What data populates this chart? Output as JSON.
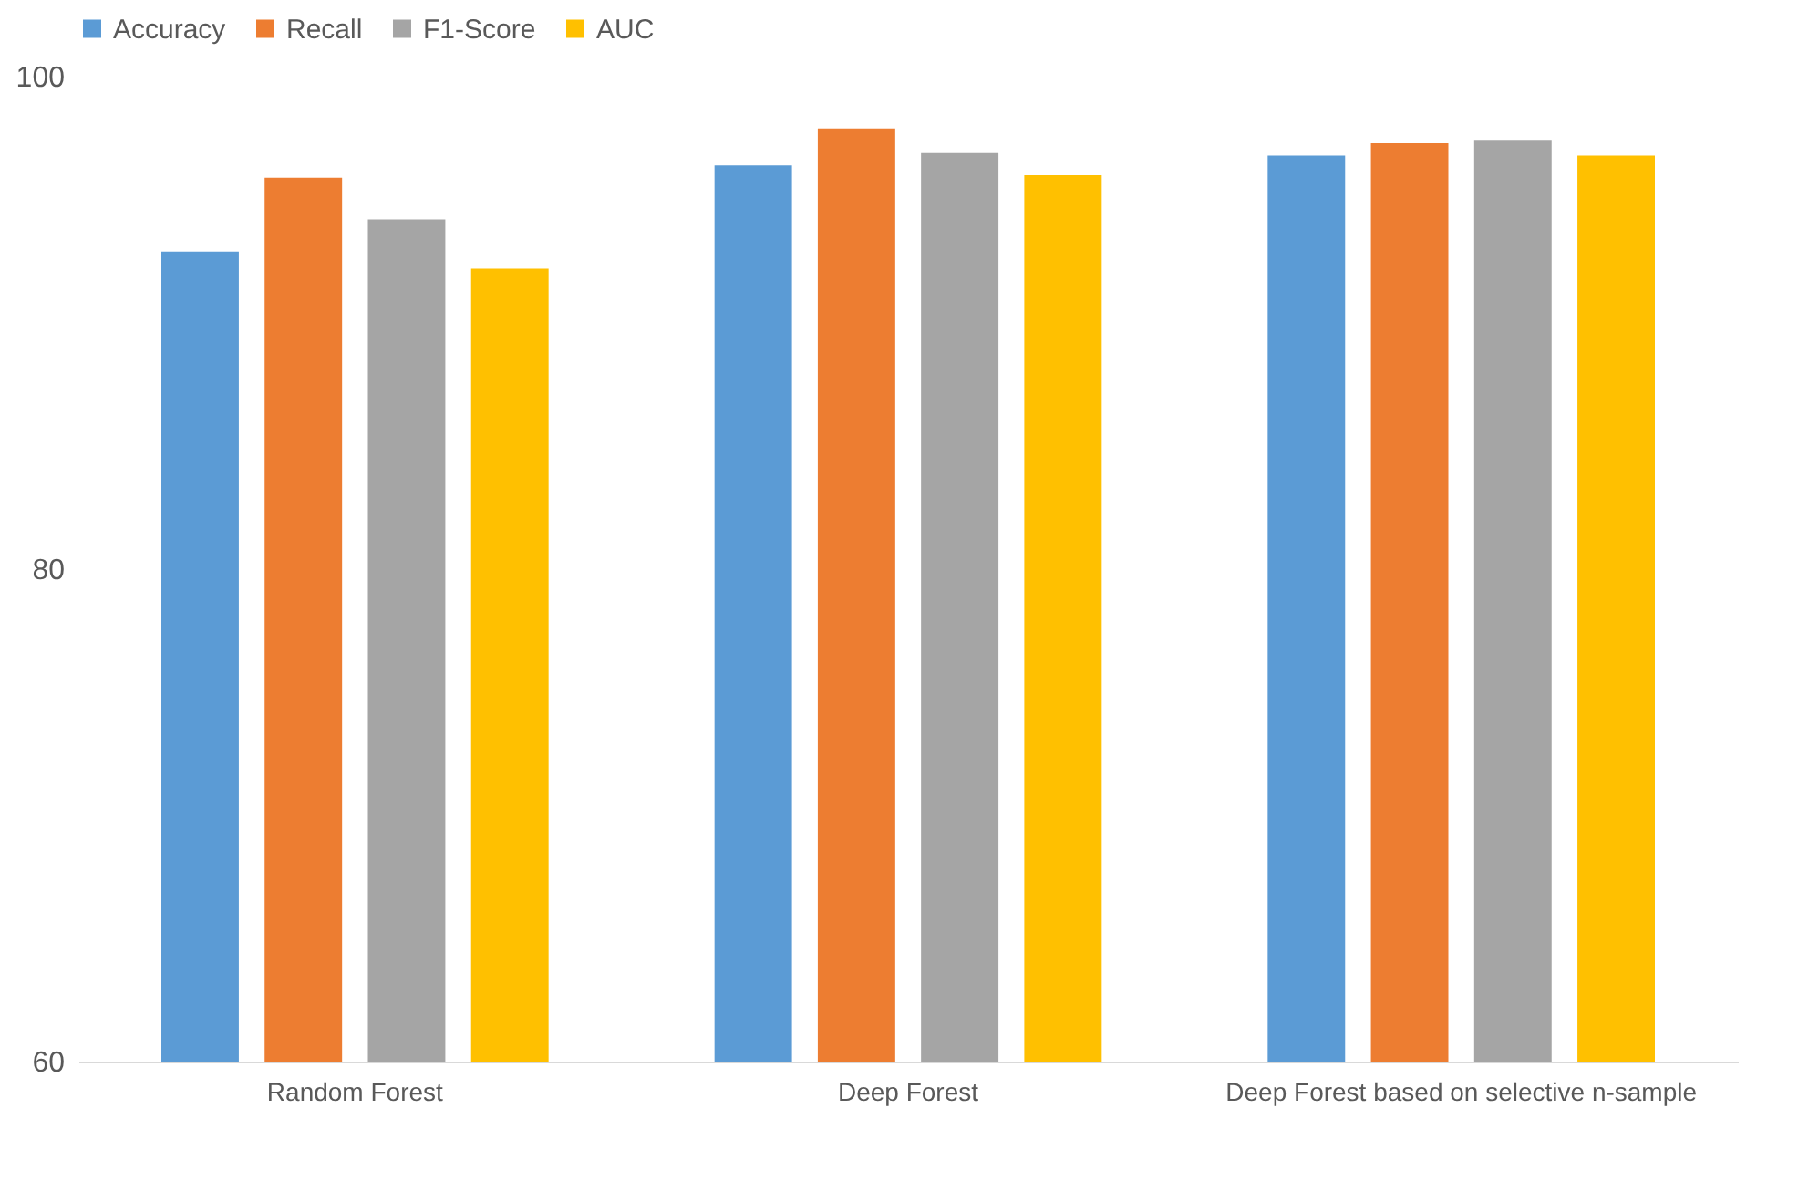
{
  "chart_data": {
    "type": "bar",
    "categories": [
      "Random Forest",
      "Deep Forest",
      "Deep Forest based on selective n-sample"
    ],
    "series": [
      {
        "name": "Accuracy",
        "color": "#5b9bd5",
        "values": [
          92.9,
          96.4,
          96.8
        ]
      },
      {
        "name": "Recall",
        "color": "#ed7d31",
        "values": [
          95.9,
          97.9,
          97.3
        ]
      },
      {
        "name": "F1-Score",
        "color": "#a5a5a5",
        "values": [
          94.2,
          96.9,
          97.4
        ]
      },
      {
        "name": "AUC",
        "color": "#ffc000",
        "values": [
          92.2,
          96.0,
          96.8
        ]
      }
    ],
    "ylim": [
      60,
      100
    ],
    "yticks": [
      60,
      80,
      100
    ],
    "grid": false,
    "legend": "top"
  }
}
